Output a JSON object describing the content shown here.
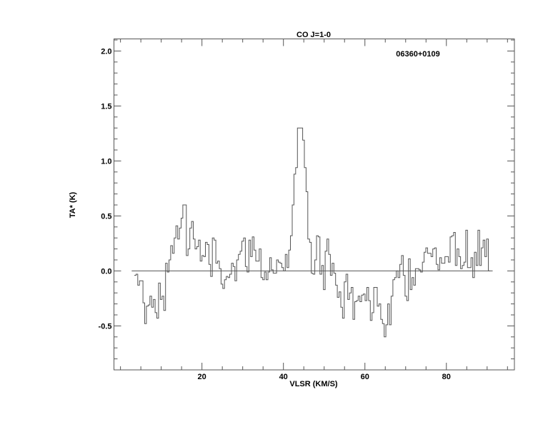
{
  "chart_data": {
    "type": "line",
    "style": "histogram-step",
    "title": "CO J=1-0",
    "annotation": "06360+0109",
    "xlabel": "VLSR (KM/S)",
    "ylabel": "TA* (K)",
    "xlim": [
      -1.6,
      96.7
    ],
    "ylim": [
      -0.9,
      2.11
    ],
    "xticks": [
      20,
      40,
      60,
      80
    ],
    "xtick_labels": [
      "20",
      "40",
      "60",
      "80"
    ],
    "x_minor_step": 5,
    "yticks": [
      -0.5,
      0.0,
      0.5,
      1.0,
      1.5,
      2.0
    ],
    "ytick_labels": [
      "-0.5",
      "0.0",
      "0.5",
      "1.0",
      "1.5",
      "2.0"
    ],
    "y_minor_step": 0.1,
    "baseline": 0.0,
    "grid": false,
    "line_color": "#555555",
    "x_start": 3.6,
    "channel_width": 0.426,
    "values": [
      -0.04,
      -0.03,
      -0.13,
      -0.09,
      -0.09,
      -0.29,
      -0.48,
      -0.32,
      -0.31,
      -0.23,
      -0.33,
      -0.26,
      -0.38,
      -0.43,
      -0.11,
      -0.26,
      -0.23,
      -0.36,
      0.07,
      -0.01,
      0.1,
      0.23,
      0.16,
      0.3,
      0.41,
      0.29,
      0.39,
      0.48,
      0.6,
      0.6,
      0.14,
      0.2,
      0.39,
      0.45,
      0.29,
      0.2,
      0.22,
      0.28,
      0.09,
      0.14,
      0.13,
      0.26,
      0.24,
      0.06,
      -0.05,
      0.3,
      0.28,
      0.07,
      0.09,
      0.02,
      -0.12,
      -0.16,
      -0.08,
      -0.05,
      -0.06,
      -0.03,
      0.07,
      0.04,
      -0.09,
      0.1,
      0.15,
      0.18,
      0.27,
      0.3,
      0.04,
      -0.01,
      0.28,
      0.13,
      0.31,
      0.19,
      0.09,
      0.09,
      0.2,
      -0.06,
      -0.08,
      -0.01,
      -0.08,
      -0.01,
      0.12,
      0.01,
      -0.02,
      -0.02,
      0.1,
      0.08,
      0.07,
      0.03,
      0.0,
      0.15,
      0.03,
      0.19,
      0.32,
      0.6,
      0.88,
      0.94,
      1.3,
      1.3,
      1.3,
      1.19,
      0.94,
      0.72,
      0.29,
      0.26,
      -0.02,
      -0.03,
      0.1,
      0.32,
      0.31,
      -0.03,
      0.05,
      -0.17,
      0.18,
      0.29,
      0.15,
      -0.04,
      0.07,
      -0.02,
      -0.13,
      -0.24,
      -0.19,
      -0.33,
      -0.43,
      -0.1,
      -0.03,
      -0.26,
      -0.2,
      -0.15,
      -0.44,
      -0.28,
      -0.27,
      -0.23,
      -0.28,
      -0.22,
      -0.21,
      -0.27,
      -0.15,
      -0.27,
      -0.45,
      -0.38,
      -0.15,
      -0.15,
      -0.32,
      -0.3,
      -0.44,
      -0.48,
      -0.6,
      -0.49,
      -0.3,
      -0.49,
      -0.23,
      -0.08,
      -0.06,
      0.0,
      -0.06,
      0.06,
      0.14,
      -0.04,
      -0.23,
      -0.27,
      0.11,
      -0.17,
      -0.06,
      -0.13,
      0.02,
      0.02,
      0.01,
      -0.01,
      0.08,
      0.17,
      0.21,
      0.16,
      0.16,
      0.13,
      0.2,
      0.21,
      0.06,
      0.01,
      0.12,
      0.07,
      0.07,
      0.13,
      0.13,
      0.08,
      0.31,
      0.32,
      0.35,
      0.05,
      0.2,
      0.13,
      0.02,
      0.05,
      0.08,
      0.37,
      0.03,
      0.03,
      0.12,
      -0.06,
      0.17,
      0.05,
      0.37,
      0.05,
      0.21,
      0.28,
      0.13,
      0.29,
      0.0
    ]
  }
}
